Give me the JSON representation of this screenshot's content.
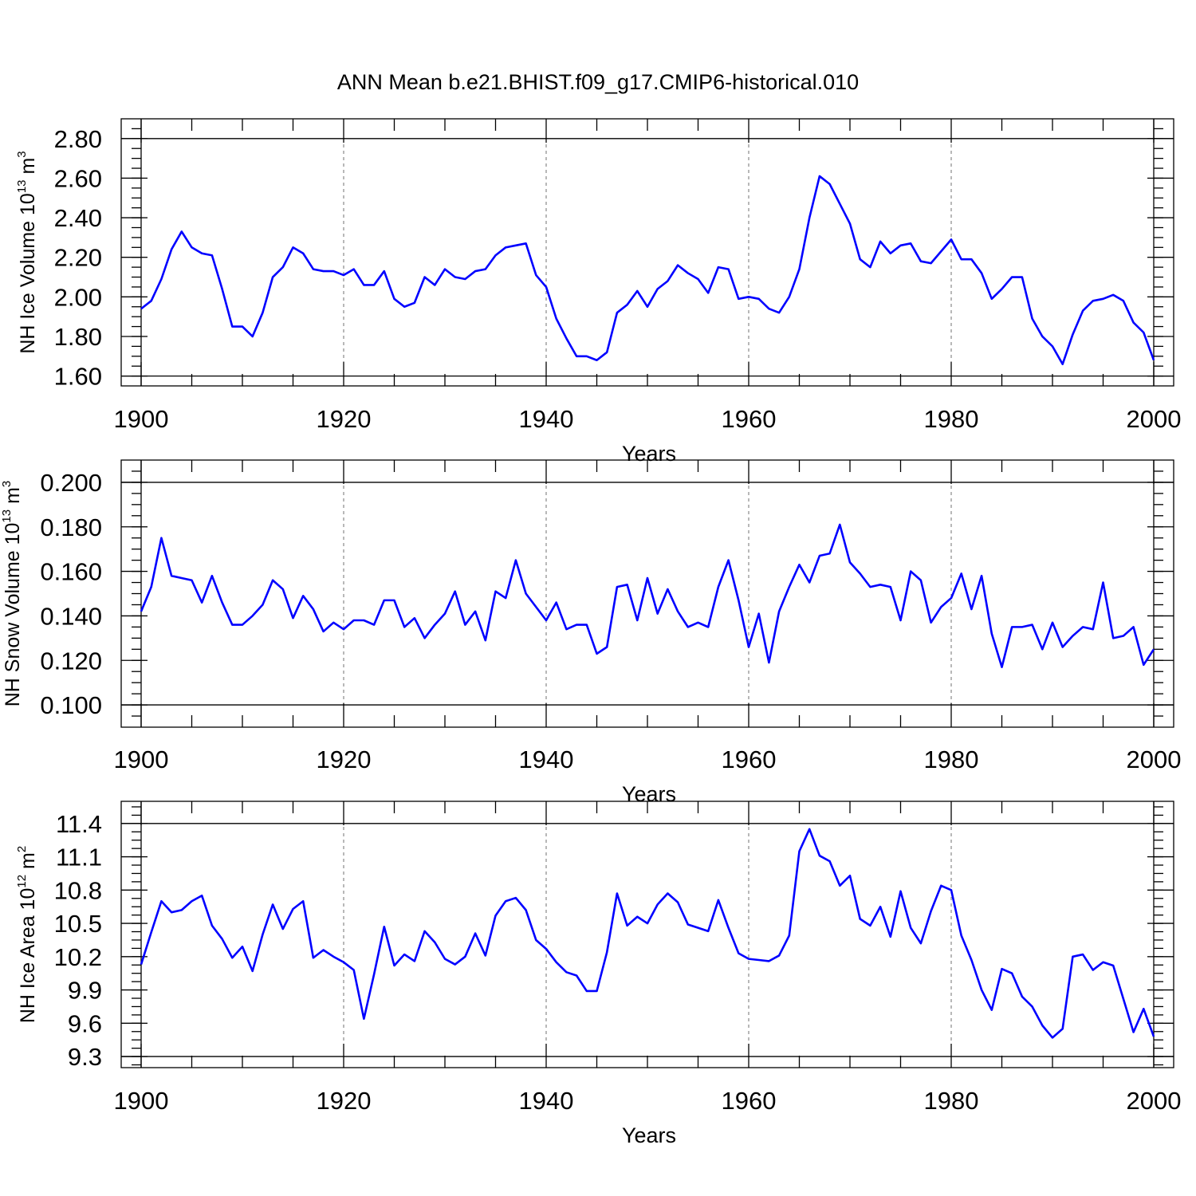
{
  "title": "ANN Mean b.e21.BHIST.f09_g17.CMIP6-historical.010",
  "colors": {
    "line": "#0000ff",
    "axis": "#000000"
  },
  "chart_data": [
    {
      "type": "line",
      "xlabel": "Years",
      "ylabel": {
        "main": "NH Ice Volume 10",
        "exp": "13",
        "unit": " m",
        "unit_exp": "3"
      },
      "xlim": [
        1900,
        2000
      ],
      "ylim": [
        1.55,
        2.9
      ],
      "x_ticks": [
        1900,
        1920,
        1940,
        1960,
        1980,
        2000
      ],
      "y_ticks": [
        1.6,
        1.8,
        2.0,
        2.2,
        2.4,
        2.6,
        2.8
      ],
      "y_tick_labels": [
        "1.60",
        "1.80",
        "2.00",
        "2.20",
        "2.40",
        "2.60",
        "2.80"
      ],
      "y_minor_step": 0.05,
      "grid": "dashed vertical at major x ticks",
      "x_start": 1900,
      "series": [
        {
          "values": [
            1.94,
            1.98,
            2.09,
            2.24,
            2.33,
            2.25,
            2.22,
            2.21,
            2.04,
            1.85,
            1.85,
            1.8,
            1.92,
            2.1,
            2.15,
            2.25,
            2.22,
            2.14,
            2.13,
            2.13,
            2.11,
            2.14,
            2.06,
            2.06,
            2.13,
            1.99,
            1.95,
            1.97,
            2.1,
            2.06,
            2.14,
            2.1,
            2.09,
            2.13,
            2.14,
            2.21,
            2.25,
            2.26,
            2.27,
            2.11,
            2.05,
            1.89,
            1.79,
            1.7,
            1.7,
            1.68,
            1.72,
            1.92,
            1.96,
            2.03,
            1.95,
            2.04,
            2.08,
            2.16,
            2.12,
            2.09,
            2.02,
            2.15,
            2.14,
            1.99,
            2.0,
            1.99,
            1.94,
            1.92,
            2.0,
            2.14,
            2.4,
            2.61,
            2.57,
            2.47,
            2.37,
            2.19,
            2.15,
            2.28,
            2.22,
            2.26,
            2.27,
            2.18,
            2.17,
            2.23,
            2.29,
            2.19,
            2.19,
            2.12,
            1.99,
            2.04,
            2.1,
            2.1,
            1.89,
            1.8,
            1.75,
            1.66,
            1.81,
            1.93,
            1.98,
            1.99,
            2.01,
            1.98,
            1.87,
            1.82,
            1.68
          ]
        }
      ]
    },
    {
      "type": "line",
      "xlabel": "Years",
      "ylabel": {
        "main": "NH Snow Volume 10",
        "exp": "13",
        "unit": " m",
        "unit_exp": "3"
      },
      "xlim": [
        1900,
        2000
      ],
      "ylim": [
        0.09,
        0.21
      ],
      "x_ticks": [
        1900,
        1920,
        1940,
        1960,
        1980,
        2000
      ],
      "y_ticks": [
        0.1,
        0.12,
        0.14,
        0.16,
        0.18,
        0.2
      ],
      "y_tick_labels": [
        "0.100",
        "0.120",
        "0.140",
        "0.160",
        "0.180",
        "0.200"
      ],
      "y_minor_step": 0.005,
      "grid": "dashed vertical at major x ticks",
      "x_start": 1900,
      "series": [
        {
          "values": [
            0.142,
            0.153,
            0.175,
            0.158,
            0.157,
            0.156,
            0.146,
            0.158,
            0.146,
            0.136,
            0.136,
            0.14,
            0.145,
            0.156,
            0.152,
            0.139,
            0.149,
            0.143,
            0.133,
            0.137,
            0.134,
            0.138,
            0.138,
            0.136,
            0.147,
            0.147,
            0.135,
            0.139,
            0.13,
            0.136,
            0.141,
            0.151,
            0.136,
            0.142,
            0.129,
            0.151,
            0.148,
            0.165,
            0.15,
            0.144,
            0.138,
            0.146,
            0.134,
            0.136,
            0.136,
            0.123,
            0.126,
            0.153,
            0.154,
            0.138,
            0.157,
            0.141,
            0.152,
            0.142,
            0.135,
            0.137,
            0.135,
            0.153,
            0.165,
            0.147,
            0.126,
            0.141,
            0.119,
            0.142,
            0.153,
            0.163,
            0.155,
            0.167,
            0.168,
            0.181,
            0.164,
            0.159,
            0.153,
            0.154,
            0.153,
            0.138,
            0.16,
            0.156,
            0.137,
            0.144,
            0.148,
            0.159,
            0.143,
            0.158,
            0.132,
            0.117,
            0.135,
            0.135,
            0.136,
            0.125,
            0.137,
            0.126,
            0.131,
            0.135,
            0.134,
            0.155,
            0.13,
            0.131,
            0.135,
            0.118,
            0.125
          ]
        }
      ]
    },
    {
      "type": "line",
      "xlabel": "Years",
      "ylabel": {
        "main": "NH Ice Area 10",
        "exp": "12",
        "unit": " m",
        "unit_exp": "2"
      },
      "xlim": [
        1900,
        2000
      ],
      "ylim": [
        9.2,
        11.6
      ],
      "x_ticks": [
        1900,
        1920,
        1940,
        1960,
        1980,
        2000
      ],
      "y_ticks": [
        9.3,
        9.6,
        9.9,
        10.2,
        10.5,
        10.8,
        11.1,
        11.4
      ],
      "y_tick_labels": [
        "9.3",
        "9.6",
        "9.9",
        "10.2",
        "10.5",
        "10.8",
        "11.1",
        "11.4"
      ],
      "y_minor_step": 0.075,
      "grid": "dashed vertical at major x ticks",
      "x_start": 1900,
      "series": [
        {
          "values": [
            10.13,
            10.42,
            10.7,
            10.6,
            10.62,
            10.7,
            10.75,
            10.48,
            10.36,
            10.19,
            10.29,
            10.07,
            10.4,
            10.67,
            10.45,
            10.63,
            10.7,
            10.19,
            10.26,
            10.2,
            10.15,
            10.08,
            9.64,
            10.04,
            10.47,
            10.12,
            10.22,
            10.16,
            10.43,
            10.33,
            10.18,
            10.13,
            10.2,
            10.41,
            10.21,
            10.57,
            10.7,
            10.73,
            10.62,
            10.35,
            10.27,
            10.15,
            10.06,
            10.03,
            9.89,
            9.89,
            10.24,
            10.77,
            10.48,
            10.56,
            10.5,
            10.67,
            10.77,
            10.69,
            10.49,
            10.46,
            10.43,
            10.71,
            10.46,
            10.23,
            10.18,
            10.17,
            10.16,
            10.21,
            10.39,
            11.15,
            11.35,
            11.11,
            11.06,
            10.84,
            10.93,
            10.54,
            10.48,
            10.65,
            10.38,
            10.79,
            10.46,
            10.32,
            10.61,
            10.84,
            10.8,
            10.39,
            10.17,
            9.9,
            9.72,
            10.09,
            10.05,
            9.84,
            9.75,
            9.58,
            9.47,
            9.55,
            10.2,
            10.22,
            10.08,
            10.15,
            10.12,
            9.82,
            9.52,
            9.73,
            9.48
          ]
        }
      ]
    }
  ]
}
